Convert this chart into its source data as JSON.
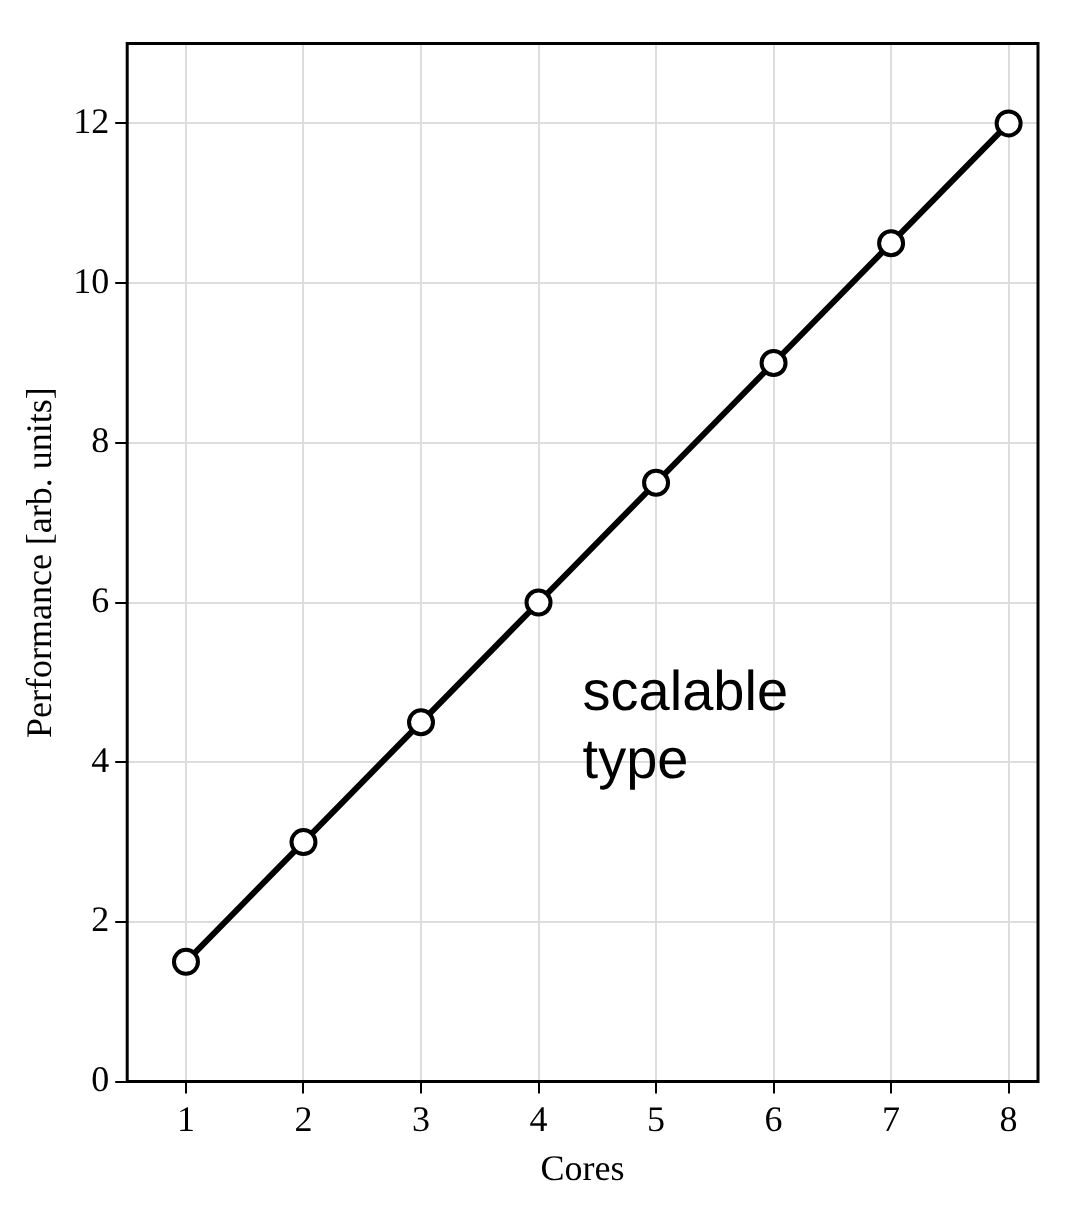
{
  "chart_data": {
    "type": "line",
    "xlabel": "Cores",
    "ylabel": "Performance [arb. units]",
    "annotations": [
      "scalable\ntype"
    ],
    "x": [
      1,
      2,
      3,
      4,
      5,
      6,
      7,
      8
    ],
    "series": [
      {
        "color": "#000000",
        "values": [
          1.5,
          3,
          4.5,
          6,
          7.5,
          9,
          10.5,
          12
        ]
      }
    ],
    "xlim": [
      0.5,
      8.25
    ],
    "xticks": [
      1,
      2,
      3,
      4,
      5,
      6,
      7,
      8
    ],
    "ylim": [
      0,
      13
    ],
    "yticks": [
      0,
      2,
      4,
      6,
      8,
      10,
      12
    ],
    "grid": true,
    "legend": false,
    "marker": "circle",
    "line_style": "solid"
  }
}
